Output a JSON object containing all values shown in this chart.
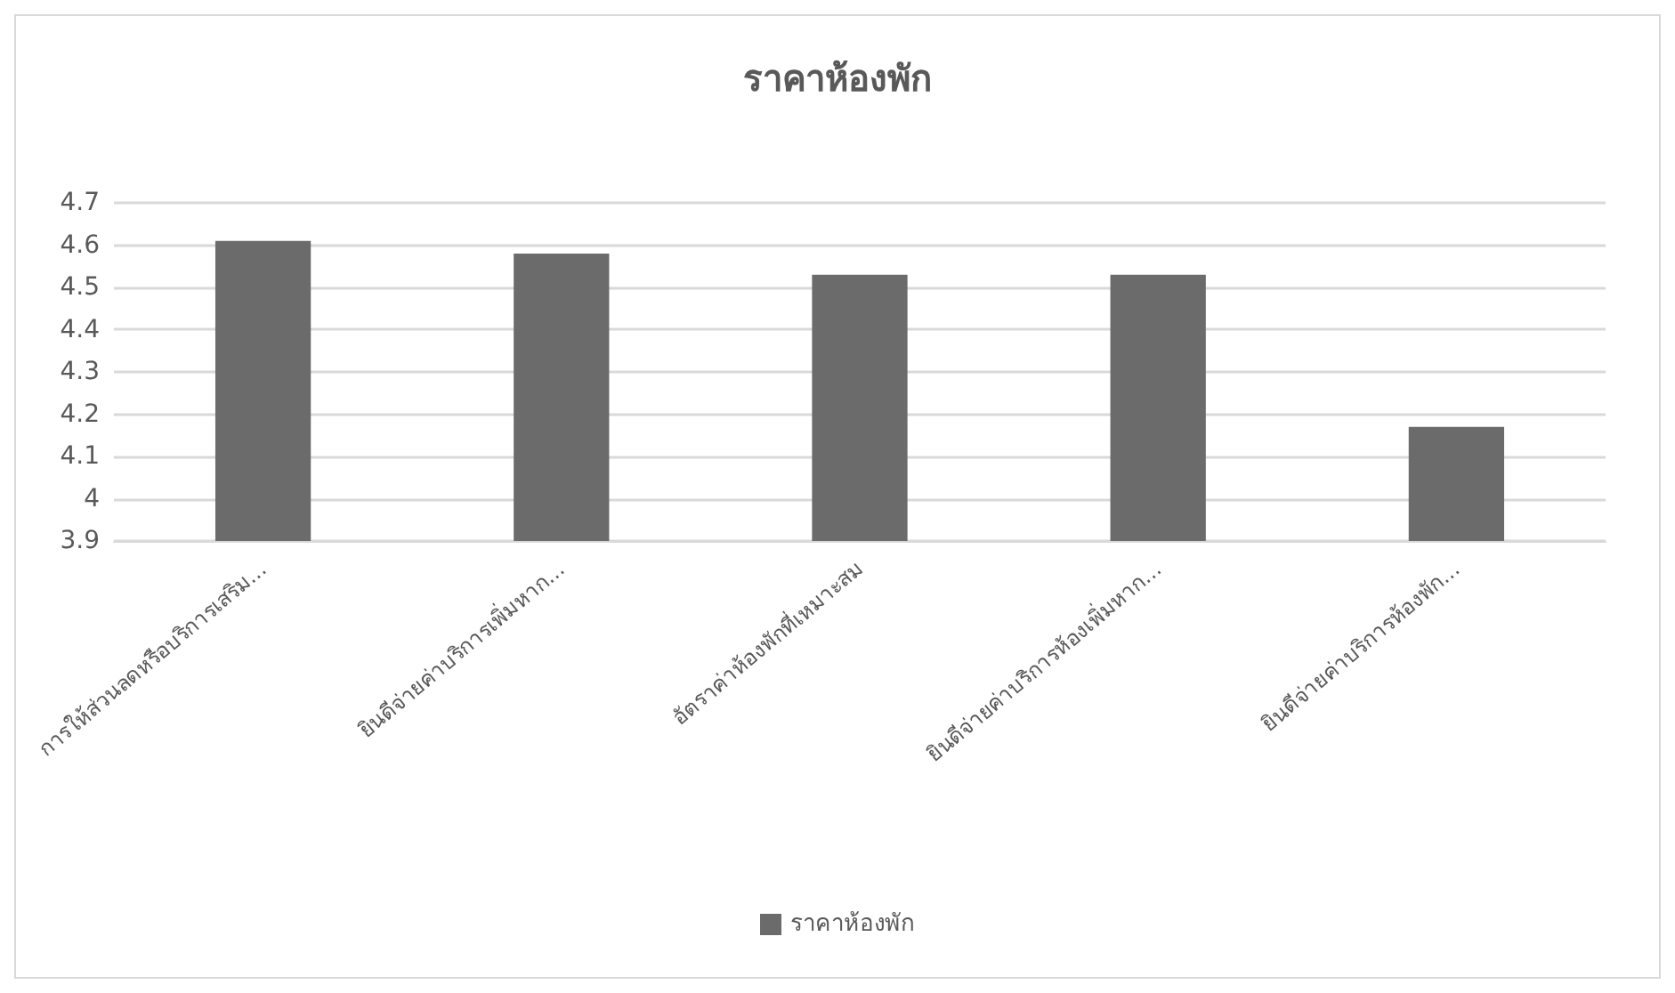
{
  "chart_data": {
    "type": "bar",
    "title": "ราคาห้องพัก",
    "categories": [
      "การให้ส่วนลดหรือบริการเสริม...",
      "ยินดีจ่ายค่าบริการเพิ่มหาก...",
      "อัตราค่าห้องพักที่เหมาะสม",
      "ยินดีจ่ายค่าบริการห้องเพิ่มหาก...",
      "ยินดีจ่ายค่าบริการห้องพัก..."
    ],
    "series": [
      {
        "name": "ราคาห้องพัก",
        "color": "#6b6b6b",
        "values": [
          4.61,
          4.58,
          4.53,
          4.53,
          4.17
        ]
      }
    ],
    "ylim": [
      3.9,
      4.7
    ],
    "yticks": [
      3.9,
      4,
      4.1,
      4.2,
      4.3,
      4.4,
      4.5,
      4.6,
      4.7
    ],
    "grid": "y",
    "legend": "bottom"
  }
}
